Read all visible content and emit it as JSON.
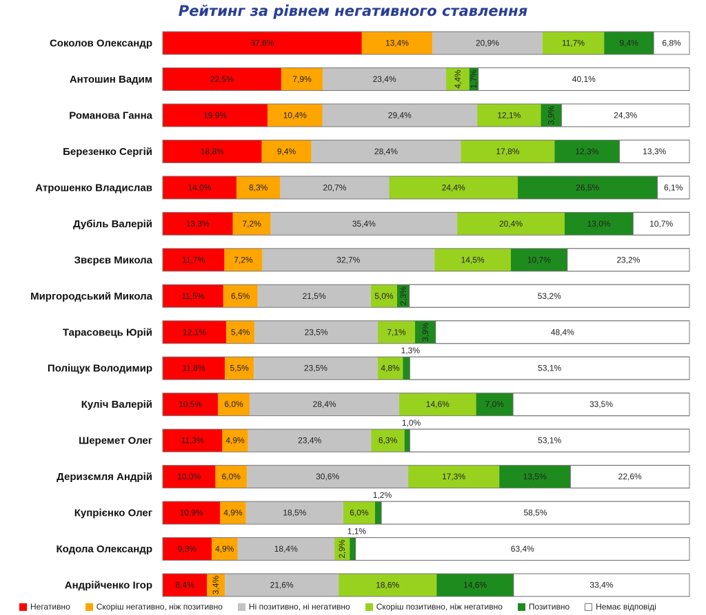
{
  "chart_data": {
    "type": "bar",
    "orientation": "horizontal-stacked-100",
    "title": "Рейтинг за рівнем негативного ставлення",
    "xlim": [
      0,
      100
    ],
    "grid": false,
    "legend_position": "bottom",
    "categories": [
      "Соколов Олександр",
      "Антошин Вадим",
      "Романова Ганна",
      "Березенко Сергій",
      "Атрошенко Владислав",
      "Дубіль Валерій",
      "Звєрєв Микола",
      "Миргородський Микола",
      "Тарасовець Юрій",
      "Поліщук Володимир",
      "Куліч Валерій",
      "Шеремет Олег",
      "Деризємля Андрій",
      "Купрієнко Олег",
      "Кодола Олександр",
      "Андрійченко Ігор"
    ],
    "series": [
      {
        "name": "Негативно",
        "color": "#ff0000",
        "values": [
          37.8,
          22.5,
          19.9,
          18.8,
          14.0,
          13.3,
          11.7,
          11.5,
          12.1,
          11.8,
          10.5,
          11.3,
          10.0,
          10.9,
          9.3,
          8.4
        ],
        "labels": [
          "37,8%",
          "22,5%",
          "19,9%",
          "18,8%",
          "14,0%",
          "13,3%",
          "11,7%",
          "11,5%",
          "12,1%",
          "11,8%",
          "10,5%",
          "11,3%",
          "10,0%",
          "10,9%",
          "9,3%",
          "8,4%"
        ]
      },
      {
        "name": "Скоріш негативно, ніж позитивно",
        "color": "#ffa500",
        "values": [
          13.4,
          7.9,
          10.4,
          9.4,
          8.3,
          7.2,
          7.2,
          6.5,
          5.4,
          5.5,
          6.0,
          4.9,
          6.0,
          4.9,
          4.9,
          3.4
        ],
        "labels": [
          "13,4%",
          "7,9%",
          "10,4%",
          "9,4%",
          "8,3%",
          "7,2%",
          "7,2%",
          "6,5%",
          "5,4%",
          "5,5%",
          "6,0%",
          "4,9%",
          "6,0%",
          "4,9%",
          "4,9%",
          "3,4%"
        ]
      },
      {
        "name": "Ні позитивно, ні негативно",
        "color": "#c3c3c3",
        "values": [
          20.9,
          23.4,
          29.4,
          28.4,
          20.7,
          35.4,
          32.7,
          21.5,
          23.5,
          23.5,
          28.4,
          23.4,
          30.6,
          18.5,
          18.4,
          21.6
        ],
        "labels": [
          "20,9%",
          "23,4%",
          "29,4%",
          "28,4%",
          "20,7%",
          "35,4%",
          "32,7%",
          "21,5%",
          "23,5%",
          "23,5%",
          "28,4%",
          "23,4%",
          "30,6%",
          "18,5%",
          "18,4%",
          "21,6%"
        ]
      },
      {
        "name": "Скоріш позитивно, ніж негативно",
        "color": "#99d21e",
        "values": [
          11.7,
          4.4,
          12.1,
          17.8,
          24.4,
          20.4,
          14.5,
          5.0,
          7.1,
          4.8,
          14.6,
          6.3,
          17.3,
          6.0,
          2.9,
          18.6
        ],
        "labels": [
          "11,7%",
          "4,4%",
          "12,1%",
          "17,8%",
          "24,4%",
          "20,4%",
          "14,5%",
          "5,0%",
          "7,1%",
          "4,8%",
          "14,6%",
          "6,3%",
          "17,3%",
          "6,0%",
          "2,9%",
          "18,6%"
        ]
      },
      {
        "name": "Позитивно",
        "color": "#1e8b1e",
        "values": [
          9.4,
          1.7,
          3.9,
          12.3,
          26.5,
          13.0,
          10.7,
          2.3,
          3.9,
          1.3,
          7.0,
          1.0,
          13.5,
          1.2,
          1.1,
          14.6
        ],
        "labels": [
          "9,4%",
          "1,7%",
          "3,9%",
          "12,3%",
          "26,5%",
          "13,0%",
          "10,7%",
          "2,3%",
          "3,9%",
          "1,3%",
          "7,0%",
          "1,0%",
          "13,5%",
          "1,2%",
          "1,1%",
          "14,6%"
        ]
      },
      {
        "name": "Немає відповіді",
        "color": "#ffffff",
        "values": [
          6.8,
          40.1,
          24.3,
          13.3,
          6.1,
          10.7,
          23.2,
          53.2,
          48.4,
          53.1,
          33.5,
          53.1,
          22.6,
          58.5,
          63.4,
          33.4
        ],
        "labels": [
          "6,8%",
          "40,1%",
          "24,3%",
          "13,3%",
          "6,1%",
          "10,7%",
          "23,2%",
          "53,2%",
          "48,4%",
          "53,1%",
          "33,5%",
          "53,1%",
          "22,6%",
          "58,5%",
          "63,4%",
          "33,4%"
        ]
      }
    ]
  }
}
